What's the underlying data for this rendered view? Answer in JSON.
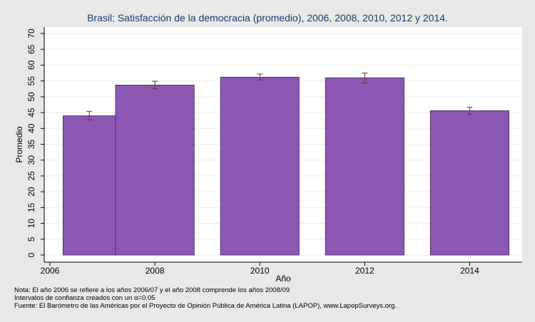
{
  "chart_data": {
    "type": "bar",
    "title": "Brasil: Satisfacción de la democracia (promedio), 2006, 2008, 2010, 2012 y 2014.",
    "xlabel": "Año",
    "ylabel": "Promedio",
    "ylim": [
      0,
      70
    ],
    "xlim": [
      2006,
      2015
    ],
    "yticks": [
      "0",
      "5",
      "10",
      "15",
      "20",
      "25",
      "30",
      "35",
      "40",
      "45",
      "50",
      "55",
      "60",
      "65",
      "70"
    ],
    "xticks": [
      "2006",
      "2008",
      "2010",
      "2012",
      "2014"
    ],
    "bars": [
      {
        "x_start": 2006.25,
        "x_end": 2007.25,
        "value": 44.0,
        "ci_low": 42.7,
        "ci_high": 45.4
      },
      {
        "x_start": 2007.25,
        "x_end": 2008.75,
        "value": 53.7,
        "ci_low": 52.6,
        "ci_high": 54.9
      },
      {
        "x_start": 2009.25,
        "x_end": 2010.75,
        "value": 56.2,
        "ci_low": 55.3,
        "ci_high": 57.2
      },
      {
        "x_start": 2011.25,
        "x_end": 2012.75,
        "value": 56.0,
        "ci_low": 54.4,
        "ci_high": 57.5
      },
      {
        "x_start": 2013.25,
        "x_end": 2014.75,
        "value": 45.6,
        "ci_low": 44.5,
        "ci_high": 46.7
      }
    ],
    "bar_color": "#8b57b2",
    "error_bar_color": "#7a2a3a",
    "grid": true,
    "legend": "none"
  },
  "notes": {
    "line1": "Nota: El año 2006 se refiere a los años 2006/07 y el año 2008 comprende los años 2008/09",
    "line2": "Intervalos de confianza creados con un α=0.05",
    "line3": "Fuente: El Barómetro de las Américas por el Proyecto de Opinión Pública de América Latina (LAPOP), www.LapopSurveys.org."
  }
}
